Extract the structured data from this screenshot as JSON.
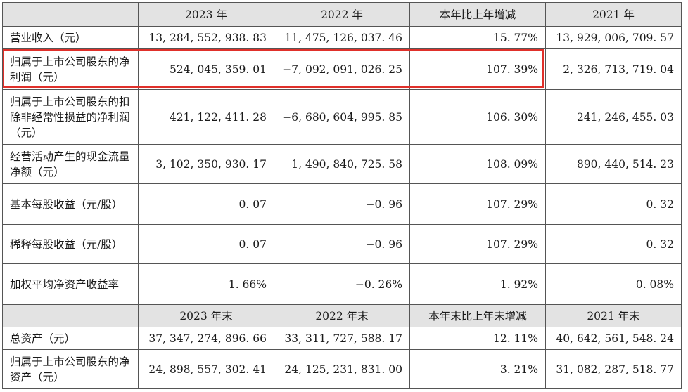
{
  "header1": {
    "blank": "",
    "y2023": "2023 年",
    "y2022": "2022 年",
    "change": "本年比上年增减",
    "y2021": "2021 年"
  },
  "rows1": [
    {
      "label": "营业收入（元）",
      "v2023": "13, 284, 552, 938. 83",
      "v2022": "11, 475, 126, 037. 46",
      "change": "15. 77%",
      "v2021": "13, 929, 006, 709. 57"
    },
    {
      "label": "归属于上市公司股东的净利润（元）",
      "v2023": "524, 045, 359. 01",
      "v2022": "−7, 092, 091, 026. 25",
      "change": "107. 39%",
      "v2021": "2, 326, 713, 719. 04"
    },
    {
      "label": "归属于上市公司股东的扣除非经常性损益的净利润（元）",
      "v2023": "421, 122, 411. 28",
      "v2022": "−6, 680, 604, 995. 85",
      "change": "106. 30%",
      "v2021": "241, 246, 455. 03"
    },
    {
      "label": "经营活动产生的现金流量净额（元）",
      "v2023": "3, 102, 350, 930. 17",
      "v2022": "1, 490, 840, 725. 58",
      "change": "108. 09%",
      "v2021": "890, 440, 514. 23"
    },
    {
      "label": "基本每股收益（元/股）",
      "v2023": "0. 07",
      "v2022": "−0. 96",
      "change": "107. 29%",
      "v2021": "0. 32"
    },
    {
      "label": "稀释每股收益（元/股）",
      "v2023": "0. 07",
      "v2022": "−0. 96",
      "change": "107. 29%",
      "v2021": "0. 32"
    },
    {
      "label": "加权平均净资产收益率",
      "v2023": "1. 66%",
      "v2022": "−0. 26%",
      "change": "1. 92%",
      "v2021": "0. 08%"
    }
  ],
  "header2": {
    "blank": "",
    "y2023": "2023 年末",
    "y2022": "2022 年末",
    "change": "本年末比上年末增减",
    "y2021": "2021 年末"
  },
  "rows2": [
    {
      "label": "总资产（元）",
      "v2023": "37, 347, 274, 896. 66",
      "v2022": "33, 311, 727, 588. 17",
      "change": "12. 11%",
      "v2021": "40, 642, 561, 548. 24"
    },
    {
      "label": "归属于上市公司股东的净资产（元）",
      "v2023": "24, 898, 557, 302. 41",
      "v2022": "24, 125, 231, 831. 00",
      "change": "3. 21%",
      "v2021": "31, 082, 287, 518. 77"
    }
  ],
  "highlight_color": "#e0302a"
}
